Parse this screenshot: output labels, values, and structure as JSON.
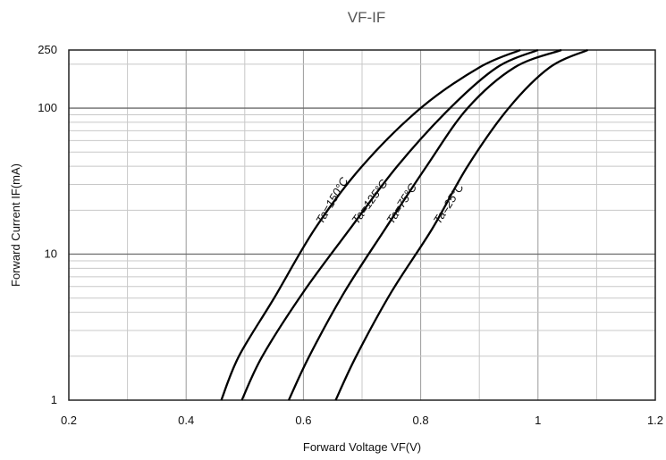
{
  "chart_data": {
    "type": "line",
    "title": "VF-IF",
    "xlabel": "Forward Voltage   VF(V)",
    "ylabel": "Forward Current   IF(mA)",
    "xlim": [
      0.2,
      1.2
    ],
    "ylim": [
      1,
      250
    ],
    "yscale": "log",
    "grid": true,
    "x_ticks": [
      "0.2",
      "0.4",
      "0.6",
      "0.8",
      "1",
      "1.2"
    ],
    "y_ticks": [
      "1",
      "10",
      "100",
      "250"
    ],
    "series": [
      {
        "name": "Ta=150°C",
        "x": [
          0.46,
          0.49,
          0.55,
          0.62,
          0.7,
          0.8,
          0.9,
          0.97
        ],
        "y": [
          1,
          2,
          5,
          15,
          40,
          100,
          190,
          250
        ]
      },
      {
        "name": "Ta=125°C",
        "x": [
          0.495,
          0.53,
          0.6,
          0.68,
          0.76,
          0.85,
          0.93,
          1.0
        ],
        "y": [
          1,
          2,
          5.5,
          15,
          40,
          100,
          190,
          250
        ]
      },
      {
        "name": "Ta=75°C",
        "x": [
          0.575,
          0.61,
          0.67,
          0.74,
          0.81,
          0.88,
          0.96,
          1.04
        ],
        "y": [
          1,
          2,
          5.5,
          15,
          40,
          100,
          190,
          250
        ]
      },
      {
        "name": "Ta=25°C",
        "x": [
          0.655,
          0.69,
          0.75,
          0.82,
          0.88,
          0.95,
          1.02,
          1.085
        ],
        "y": [
          1,
          2,
          5.5,
          15,
          40,
          100,
          190,
          250
        ]
      }
    ]
  }
}
